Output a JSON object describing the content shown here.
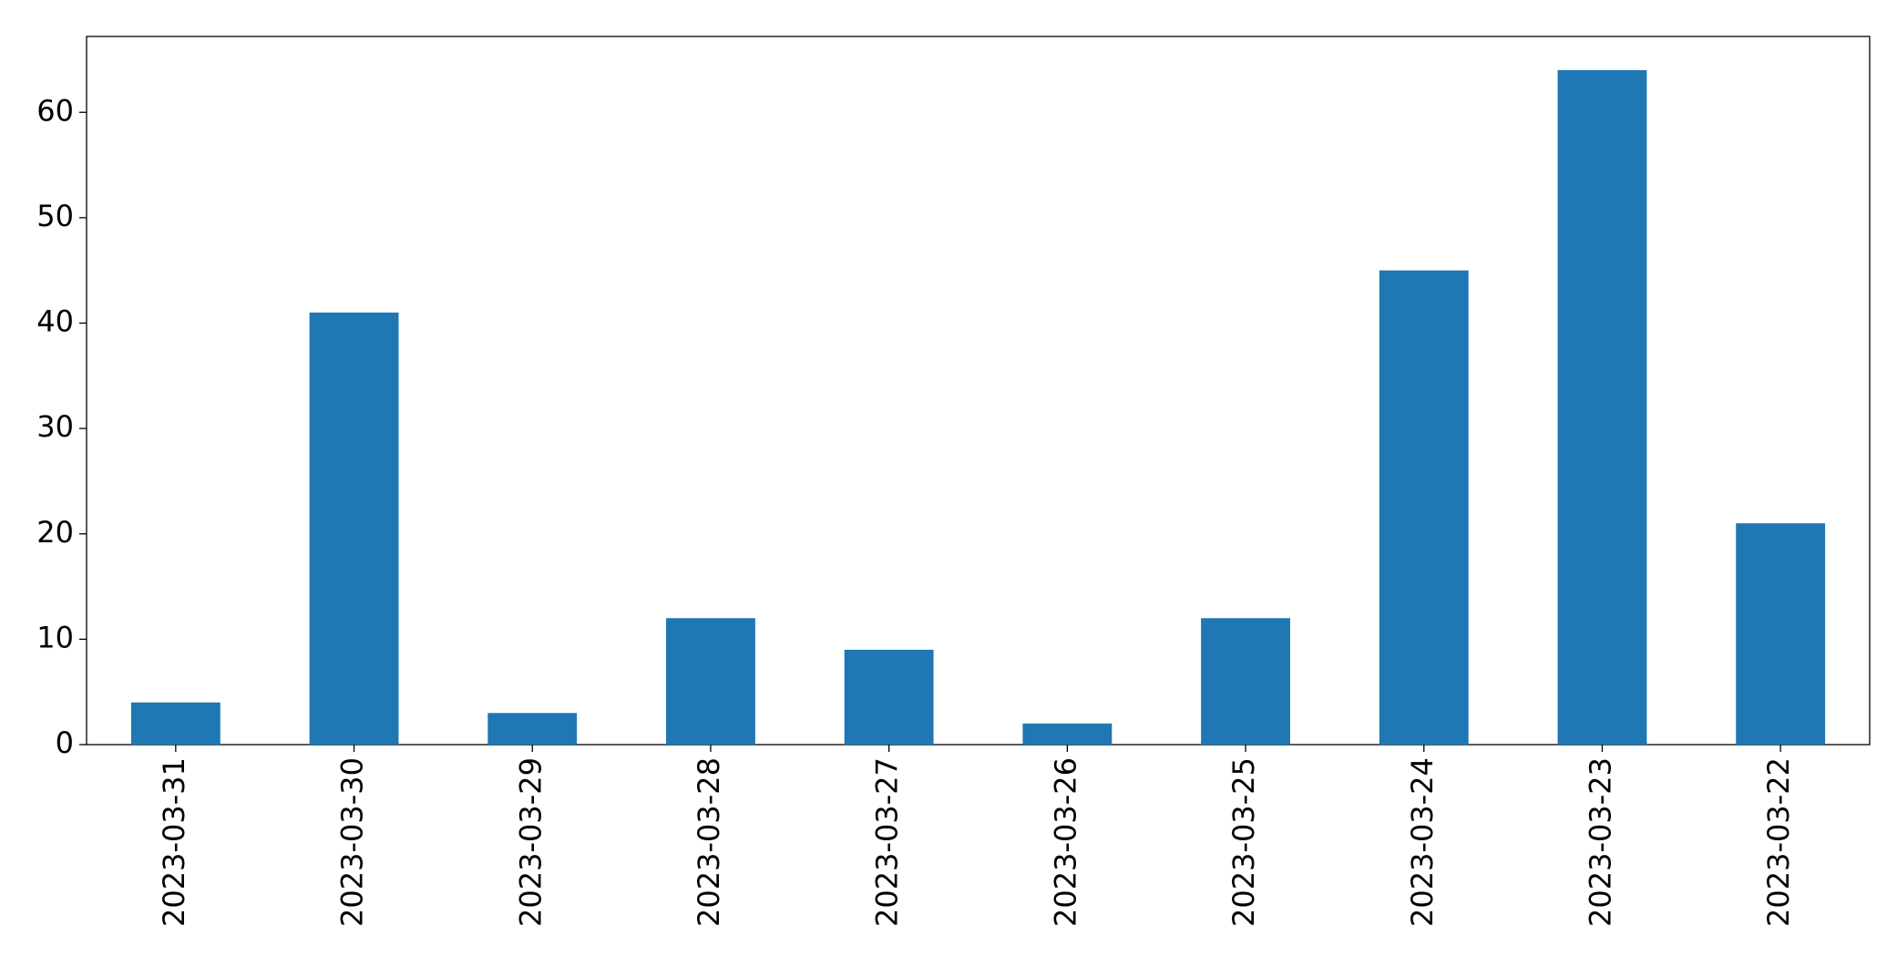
{
  "chart_data": {
    "type": "bar",
    "categories": [
      "2023-03-31",
      "2023-03-30",
      "2023-03-29",
      "2023-03-28",
      "2023-03-27",
      "2023-03-26",
      "2023-03-25",
      "2023-03-24",
      "2023-03-23",
      "2023-03-22"
    ],
    "values": [
      4,
      41,
      3,
      12,
      9,
      2,
      12,
      45,
      64,
      21
    ],
    "color": "#1f77b4",
    "ylim": [
      0,
      67.2
    ],
    "yticks": [
      0,
      10,
      20,
      30,
      40,
      50,
      60
    ],
    "grid": false
  }
}
